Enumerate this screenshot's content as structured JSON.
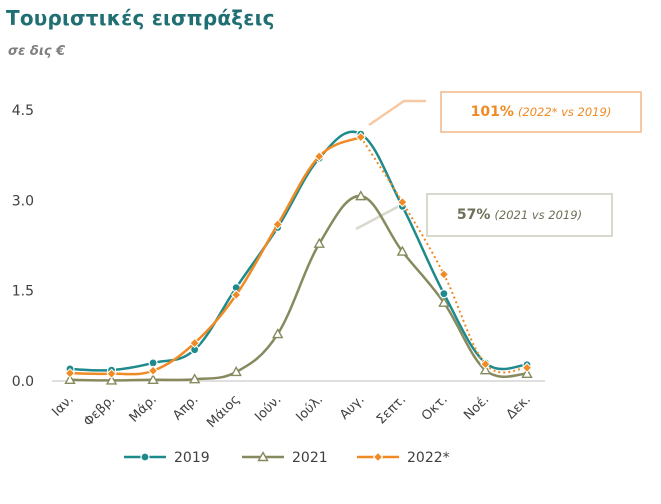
{
  "header": {
    "title": "Τουριστικές εισπράξεις",
    "subtitle": "σε δις €"
  },
  "callouts": [
    {
      "pct": "101%",
      "note": "(2022* vs 2019)"
    },
    {
      "pct": "57%",
      "note": "(2021 vs 2019)"
    }
  ],
  "colors": {
    "s2019": "#1e8a8c",
    "s2021": "#878a5e",
    "s2022": "#f08a24"
  },
  "chart_data": {
    "type": "line",
    "title": "Τουριστικές εισπράξεις",
    "ylabel": "σε δις €",
    "categories": [
      "Ιαν.",
      "Φεβρ.",
      "Μάρ.",
      "Απρ.",
      "Μάιος",
      "Ιούν.",
      "Ιούλ.",
      "Αυγ.",
      "Σεπτ.",
      "Οκτ.",
      "Νοέ.",
      "Δεκ."
    ],
    "ylim": [
      0,
      4.5
    ],
    "yticks": [
      "0.0",
      "1.5",
      "3.0",
      "4.5"
    ],
    "ytick_values": [
      0,
      1.5,
      3.0,
      4.5
    ],
    "series": [
      {
        "name": "2019",
        "values": [
          0.2,
          0.18,
          0.3,
          0.52,
          1.55,
          2.55,
          3.7,
          4.1,
          2.9,
          1.45,
          0.3,
          0.27
        ]
      },
      {
        "name": "2021",
        "values": [
          0.02,
          0.01,
          0.02,
          0.03,
          0.15,
          0.78,
          2.28,
          3.07,
          2.15,
          1.3,
          0.18,
          0.12
        ]
      },
      {
        "name": "2022*",
        "values": [
          0.13,
          0.12,
          0.17,
          0.63,
          1.43,
          2.6,
          3.73,
          4.05,
          2.97,
          1.77,
          0.28,
          0.22
        ]
      }
    ],
    "legend": [
      "2019",
      "2021",
      "2022*"
    ],
    "legend_position": "bottom"
  }
}
